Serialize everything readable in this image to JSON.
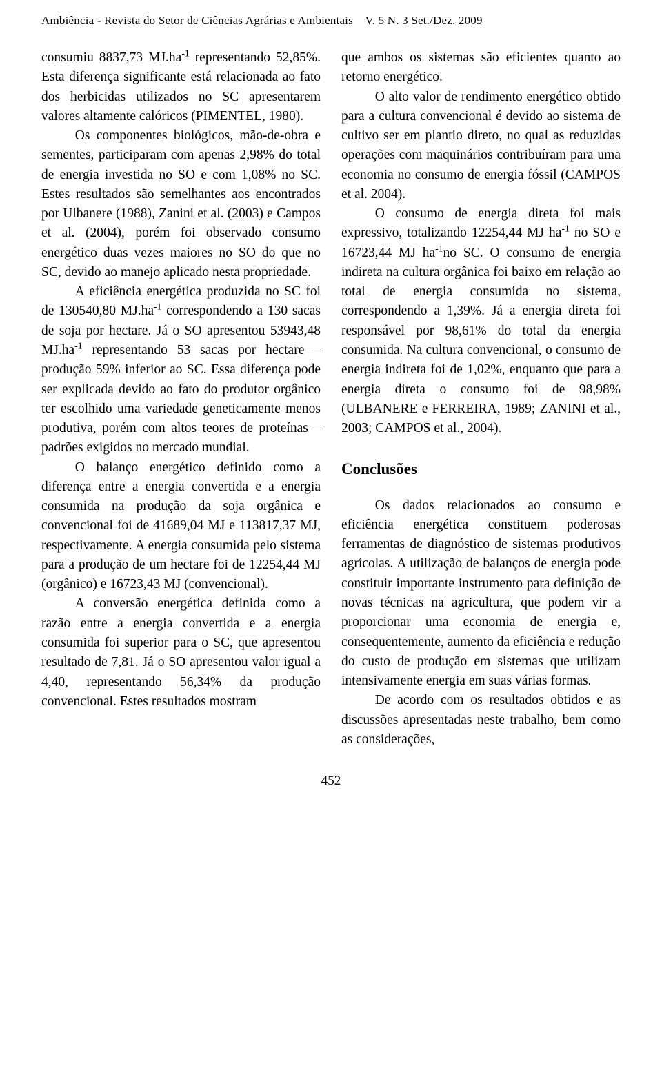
{
  "header": {
    "journal_title": "Ambiência - Revista do Setor de Ciências Agrárias e Ambientais",
    "issue_info": "V. 5 N. 3 Set./Dez. 2009"
  },
  "left_column": {
    "para1_start": "consumiu 8837,73 MJ.ha",
    "para1_sup": "-1",
    "para1_cont": " representando 52,85%. Esta diferença significante está relacionada ao fato dos herbicidas utilizados no SC apresentarem valores altamente calóricos (PIMENTEL, 1980).",
    "para2": "Os componentes biológicos, mão-de-obra e sementes, participaram com apenas 2,98% do total de energia investida no SO e com 1,08% no SC. Estes resultados são semelhantes aos encontrados por Ulbanere (1988), Zanini et al. (2003) e Campos et al. (2004), porém foi observado consumo energético duas vezes maiores no SO do que no SC, devido ao manejo aplicado nesta propriedade.",
    "para3_a": "A eficiência energética produzida no SC foi de 130540,80 MJ.ha",
    "para3_sup1": "-1",
    "para3_b": " correspondendo a 130 sacas de soja por hectare. Já o SO apresentou 53943,48 MJ.ha",
    "para3_sup2": "-1",
    "para3_c": " representando 53 sacas por hectare – produção 59% inferior ao SC. Essa diferença pode ser explicada devido ao fato do produtor orgânico ter escolhido uma variedade geneticamente menos produtiva, porém com altos teores de proteínas – padrões exigidos no mercado mundial.",
    "para4": "O balanço energético definido como a diferença entre a energia convertida e a energia consumida na produção da soja orgânica e convencional foi de 41689,04 MJ e 113817,37 MJ, respectivamente. A energia consumida pelo sistema para a produção de um hectare foi de 12254,44 MJ (orgânico) e 16723,43 MJ (convencional).",
    "para5": "A conversão energética definida como a razão entre a energia convertida e a energia consumida foi superior para o SC, que apresentou resultado de 7,81. Já o SO apresentou valor igual a 4,40, representando 56,34% da produção convencional. Estes resultados mostram"
  },
  "right_column": {
    "para1": "que ambos os sistemas são eficientes quanto ao retorno energético.",
    "para2": "O alto valor de rendimento energético obtido para a cultura convencional é devido ao sistema de cultivo ser em plantio direto, no qual as reduzidas operações com maquinários contribuíram para uma economia no consumo de energia fóssil (CAMPOS et al. 2004).",
    "para3_a": "O consumo de energia direta foi mais expressivo, totalizando 12254,44 MJ ha",
    "para3_sup1": "-1",
    "para3_b": " no SO e 16723,44 MJ ha",
    "para3_sup2": "-1",
    "para3_c": "no SC. O consumo de energia indireta na cultura orgânica foi baixo em relação ao total de energia consumida no sistema, correspondendo a 1,39%. Já a energia direta foi responsável por 98,61% do total da energia consumida. Na cultura convencional, o consumo de energia indireta foi de 1,02%, enquanto que para a energia direta o consumo foi de 98,98% (ULBANERE e FERREIRA, 1989; ZANINI et al., 2003; CAMPOS et al., 2004).",
    "section_heading": "Conclusões",
    "para4": "Os dados relacionados ao consumo e eficiência energética constituem poderosas ferramentas de diagnóstico de sistemas produtivos agrícolas. A utilização de balanços de energia pode constituir importante instrumento para definição de novas técnicas na agricultura, que podem vir a proporcionar uma economia de energia e, consequentemente, aumento da eficiência e redução do custo de produção em sistemas que utilizam intensivamente energia em suas várias formas.",
    "para5": "De acordo com os resultados obtidos e as discussões apresentadas neste trabalho, bem como as considerações,"
  },
  "page_number": "452"
}
